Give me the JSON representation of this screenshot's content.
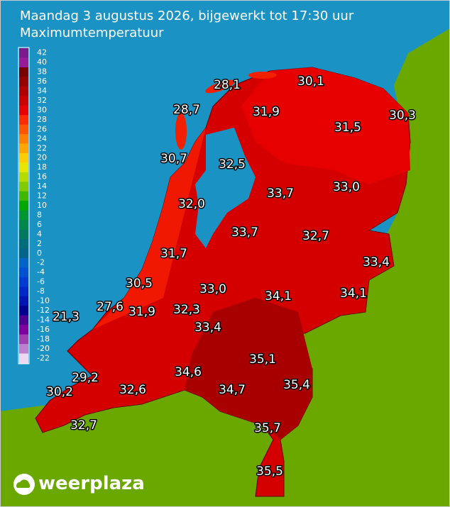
{
  "header": {
    "title": "Maandag 3 augustus 2026, bijgewerkt tot 17:30 uur",
    "subtitle": "Maximumtemperatuur"
  },
  "legend": {
    "entries": [
      {
        "label": "42",
        "color": "#7a1a8c"
      },
      {
        "label": "40",
        "color": "#9a1a9a"
      },
      {
        "label": "38",
        "color": "#7a0000"
      },
      {
        "label": "36",
        "color": "#960000"
      },
      {
        "label": "34",
        "color": "#b00000"
      },
      {
        "label": "32",
        "color": "#cc0000"
      },
      {
        "label": "30",
        "color": "#e80000"
      },
      {
        "label": "28",
        "color": "#ff2a00"
      },
      {
        "label": "26",
        "color": "#ff5500"
      },
      {
        "label": "24",
        "color": "#ff8000"
      },
      {
        "label": "22",
        "color": "#ffa500"
      },
      {
        "label": "20",
        "color": "#ffcc00"
      },
      {
        "label": "18",
        "color": "#e6e600"
      },
      {
        "label": "16",
        "color": "#b4dc00"
      },
      {
        "label": "14",
        "color": "#80cc00"
      },
      {
        "label": "12",
        "color": "#40b800"
      },
      {
        "label": "10",
        "color": "#00a800"
      },
      {
        "label": "8",
        "color": "#009630"
      },
      {
        "label": "6",
        "color": "#00874a"
      },
      {
        "label": "4",
        "color": "#007a5e"
      },
      {
        "label": "2",
        "color": "#006e78"
      },
      {
        "label": "0",
        "color": "#00648c"
      },
      {
        "label": "-2",
        "color": "#0064c8"
      },
      {
        "label": "-4",
        "color": "#0050d2"
      },
      {
        "label": "-6",
        "color": "#003cd2"
      },
      {
        "label": "-8",
        "color": "#0028c8"
      },
      {
        "label": "-10",
        "color": "#0014b4"
      },
      {
        "label": "-12",
        "color": "#000090"
      },
      {
        "label": "-14",
        "color": "#500090"
      },
      {
        "label": "-16",
        "color": "#8000a0"
      },
      {
        "label": "-18",
        "color": "#a040b0"
      },
      {
        "label": "-20",
        "color": "#c080d0"
      },
      {
        "label": "-22",
        "color": "#ecd8f0"
      }
    ]
  },
  "map": {
    "temperatures": [
      "28,1",
      "30,1",
      "28,7",
      "31,9",
      "30,3",
      "31,5",
      "30,7",
      "32,5",
      "33,7",
      "33,0",
      "32,0",
      "33,7",
      "32,7",
      "31,7",
      "33,4",
      "30,5",
      "33,0",
      "34,1",
      "34,1",
      "27,6",
      "31,9",
      "32,3",
      "21,3",
      "33,4",
      "35,1",
      "34,6",
      "35,4",
      "29,2",
      "30,2",
      "32,6",
      "34,7",
      "35,7",
      "32,7",
      "35,5"
    ]
  },
  "logo": {
    "text": "weerplaza"
  }
}
